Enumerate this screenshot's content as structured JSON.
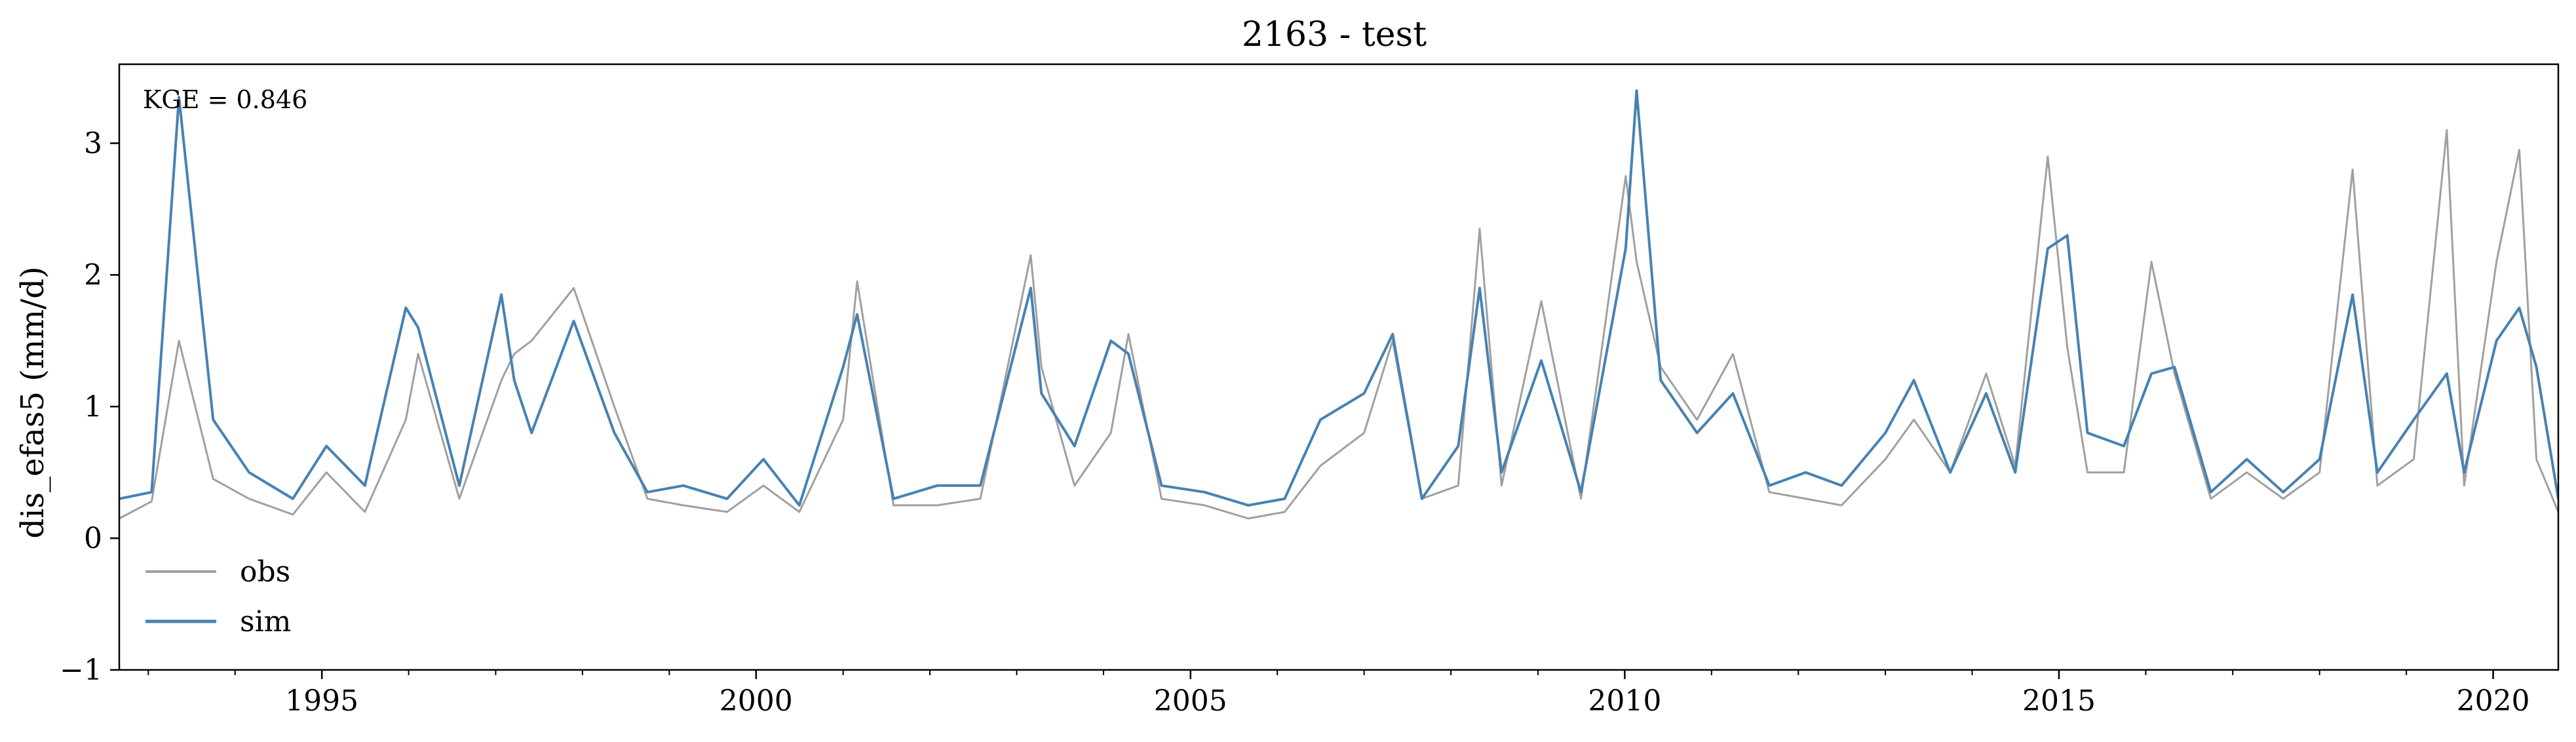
{
  "chart_data": {
    "type": "line",
    "title": "2163 - test",
    "xlabel": "",
    "ylabel": "dis_efas5 (mm/d)",
    "xlim": [
      "1992-09-01",
      "2020-10-01"
    ],
    "ylim": [
      -1,
      3.6
    ],
    "x_ticks": [
      1995,
      2000,
      2005,
      2010,
      2015,
      2020
    ],
    "x_tick_labels": [
      "1995",
      "2000",
      "2005",
      "2010",
      "2015",
      "2020"
    ],
    "y_ticks": [
      -1,
      0,
      1,
      2,
      3
    ],
    "y_tick_labels": [
      "−1",
      "0",
      "1",
      "2",
      "3"
    ],
    "grid": false,
    "legend_position": "lower-left",
    "annotation": "KGE = 0.846",
    "series": [
      {
        "name": "obs",
        "color": "#a0a0a0",
        "x": [
          "1992-09-01",
          "1993-01-15",
          "1993-05-10",
          "1993-10-01",
          "1994-03-01",
          "1994-09-01",
          "1995-01-20",
          "1995-07-01",
          "1995-12-20",
          "1996-02-10",
          "1996-08-01",
          "1997-01-25",
          "1997-03-20",
          "1997-06-01",
          "1997-11-25",
          "1998-05-15",
          "1998-10-01",
          "1999-03-01",
          "1999-09-01",
          "2000-02-01",
          "2000-07-01",
          "2001-01-01",
          "2001-03-01",
          "2001-08-01",
          "2002-02-01",
          "2002-08-01",
          "2003-03-01",
          "2003-04-15",
          "2003-09-01",
          "2004-02-01",
          "2004-04-15",
          "2004-09-01",
          "2005-03-01",
          "2005-09-01",
          "2006-02-01",
          "2006-07-01",
          "2007-01-01",
          "2007-05-01",
          "2007-09-01",
          "2008-02-01",
          "2008-05-01",
          "2008-08-01",
          "2009-01-15",
          "2009-07-01",
          "2010-01-05",
          "2010-02-20",
          "2010-06-01",
          "2010-11-01",
          "2011-04-01",
          "2011-09-01",
          "2012-02-01",
          "2012-07-01",
          "2013-01-01",
          "2013-05-01",
          "2013-10-01",
          "2014-03-01",
          "2014-07-01",
          "2014-11-15",
          "2015-02-05",
          "2015-05-01",
          "2015-10-01",
          "2016-01-25",
          "2016-05-01",
          "2016-10-01",
          "2017-03-01",
          "2017-08-01",
          "2018-01-01",
          "2018-05-20",
          "2018-09-01",
          "2019-02-01",
          "2019-06-20",
          "2019-09-01",
          "2020-01-15",
          "2020-04-20",
          "2020-07-01",
          "2020-10-01"
        ],
        "y": [
          0.15,
          0.28,
          1.5,
          0.45,
          0.3,
          0.18,
          0.5,
          0.2,
          0.9,
          1.4,
          0.3,
          1.2,
          1.4,
          1.5,
          1.9,
          1.0,
          0.3,
          0.25,
          0.2,
          0.4,
          0.2,
          0.9,
          1.95,
          0.25,
          0.25,
          0.3,
          2.15,
          1.3,
          0.4,
          0.8,
          1.55,
          0.3,
          0.25,
          0.15,
          0.2,
          0.55,
          0.8,
          1.5,
          0.3,
          0.4,
          2.35,
          0.4,
          1.8,
          0.3,
          2.75,
          2.1,
          1.3,
          0.9,
          1.4,
          0.35,
          0.3,
          0.25,
          0.6,
          0.9,
          0.5,
          1.25,
          0.55,
          2.9,
          1.45,
          0.5,
          0.5,
          2.1,
          1.25,
          0.3,
          0.5,
          0.3,
          0.5,
          2.8,
          0.4,
          0.6,
          3.1,
          0.4,
          2.1,
          2.95,
          0.6,
          0.2
        ]
      },
      {
        "name": "sim",
        "color": "#4682b4",
        "x": [
          "1992-09-01",
          "1993-01-15",
          "1993-05-10",
          "1993-10-01",
          "1994-03-01",
          "1994-09-01",
          "1995-01-20",
          "1995-07-01",
          "1995-12-20",
          "1996-02-10",
          "1996-08-01",
          "1997-01-25",
          "1997-03-20",
          "1997-06-01",
          "1997-11-25",
          "1998-05-15",
          "1998-10-01",
          "1999-03-01",
          "1999-09-01",
          "2000-02-01",
          "2000-07-01",
          "2001-01-01",
          "2001-03-01",
          "2001-08-01",
          "2002-02-01",
          "2002-08-01",
          "2003-03-01",
          "2003-04-15",
          "2003-09-01",
          "2004-02-01",
          "2004-04-15",
          "2004-09-01",
          "2005-03-01",
          "2005-09-01",
          "2006-02-01",
          "2006-07-01",
          "2007-01-01",
          "2007-05-01",
          "2007-09-01",
          "2008-02-01",
          "2008-05-01",
          "2008-08-01",
          "2009-01-15",
          "2009-07-01",
          "2010-01-05",
          "2010-02-20",
          "2010-06-01",
          "2010-11-01",
          "2011-04-01",
          "2011-09-01",
          "2012-02-01",
          "2012-07-01",
          "2013-01-01",
          "2013-05-01",
          "2013-10-01",
          "2014-03-01",
          "2014-07-01",
          "2014-11-15",
          "2015-02-05",
          "2015-05-01",
          "2015-10-01",
          "2016-01-25",
          "2016-05-01",
          "2016-10-01",
          "2017-03-01",
          "2017-08-01",
          "2018-01-01",
          "2018-05-20",
          "2018-09-01",
          "2019-02-01",
          "2019-06-20",
          "2019-09-01",
          "2020-01-15",
          "2020-04-20",
          "2020-07-01",
          "2020-10-01"
        ],
        "y": [
          0.3,
          0.35,
          3.35,
          0.9,
          0.5,
          0.3,
          0.7,
          0.4,
          1.75,
          1.6,
          0.4,
          1.85,
          1.2,
          0.8,
          1.65,
          0.8,
          0.35,
          0.4,
          0.3,
          0.6,
          0.25,
          1.3,
          1.7,
          0.3,
          0.4,
          0.4,
          1.9,
          1.1,
          0.7,
          1.5,
          1.4,
          0.4,
          0.35,
          0.25,
          0.3,
          0.9,
          1.1,
          1.55,
          0.3,
          0.7,
          1.9,
          0.5,
          1.35,
          0.35,
          2.2,
          3.4,
          1.2,
          0.8,
          1.1,
          0.4,
          0.5,
          0.4,
          0.8,
          1.2,
          0.5,
          1.1,
          0.5,
          2.2,
          2.3,
          0.8,
          0.7,
          1.25,
          1.3,
          0.35,
          0.6,
          0.35,
          0.6,
          1.85,
          0.5,
          0.9,
          1.25,
          0.5,
          1.5,
          1.75,
          1.3,
          0.3
        ]
      }
    ]
  }
}
